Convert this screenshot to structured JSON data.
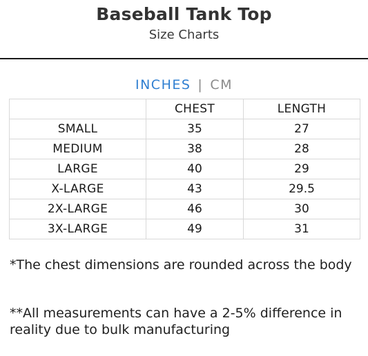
{
  "header": {
    "title": "Baseball Tank Top",
    "subtitle": "Size Charts"
  },
  "units": {
    "active": "INCHES",
    "separator": "|",
    "inactive": "CM"
  },
  "table": {
    "columns": [
      "",
      "CHEST",
      "LENGTH"
    ],
    "rows": [
      {
        "size": "SMALL",
        "chest": "35",
        "length": "27"
      },
      {
        "size": "MEDIUM",
        "chest": "38",
        "length": "28"
      },
      {
        "size": "LARGE",
        "chest": "40",
        "length": "29"
      },
      {
        "size": "X-LARGE",
        "chest": "43",
        "length": "29.5"
      },
      {
        "size": "2X-LARGE",
        "chest": "46",
        "length": "30"
      },
      {
        "size": "3X-LARGE",
        "chest": "49",
        "length": "31"
      }
    ]
  },
  "notes": {
    "note1": "*The chest dimensions are rounded across the body",
    "note2": "**All measurements can have a 2-5% difference in reality due to bulk manufacturing"
  }
}
